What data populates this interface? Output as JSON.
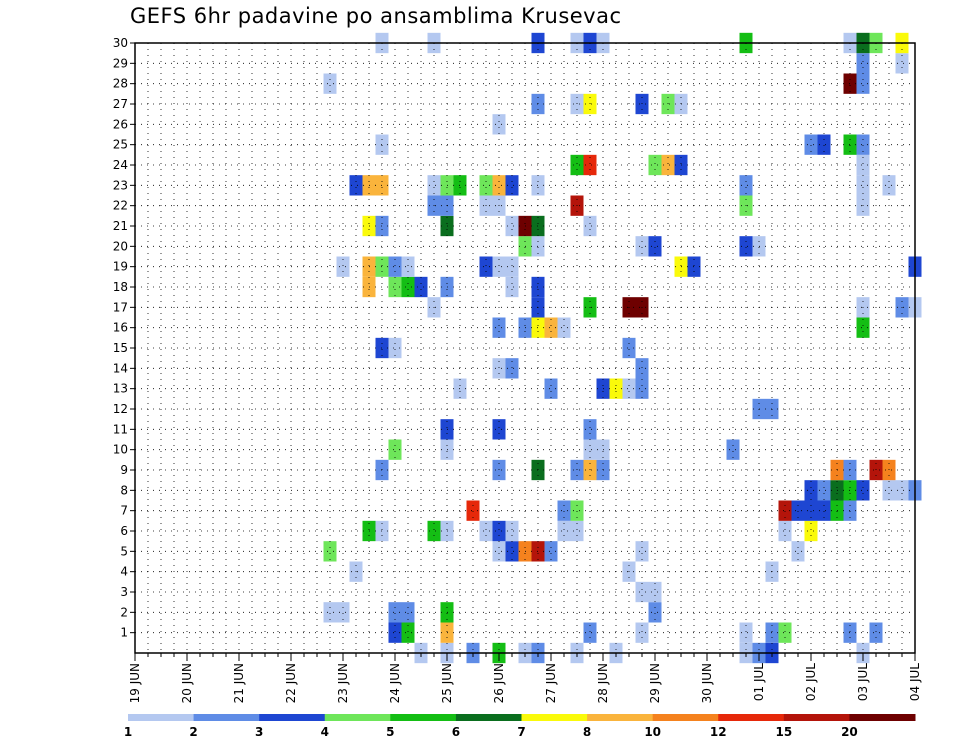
{
  "chart_data": {
    "type": "heatmap",
    "title": "GEFS 6hr padavine po ansamblima Krusevac",
    "y_ticks": [
      "1",
      "2",
      "3",
      "4",
      "5",
      "6",
      "7",
      "8",
      "9",
      "10",
      "11",
      "12",
      "13",
      "14",
      "15",
      "16",
      "17",
      "18",
      "19",
      "20",
      "21",
      "22",
      "23",
      "24",
      "25",
      "26",
      "27",
      "28",
      "29",
      "30"
    ],
    "ylim": [
      0,
      30
    ],
    "x_ticks": [
      "19 JUN",
      "20 JUN",
      "21 JUN",
      "22 JUN",
      "23 JUN",
      "24 JUN",
      "25 JUN",
      "26 JUN",
      "27 JUN",
      "28 JUN",
      "29 JUN",
      "30 JUN",
      "01 JUL",
      "02 JUL",
      "03 JUL",
      "04 JUL"
    ],
    "x_unit": "6h step from 19 JUN 00Z",
    "xlim": [
      0,
      60
    ],
    "grid": true,
    "colorbar": {
      "bins": [
        {
          "from": 1,
          "to": 2,
          "color": "#b4c8f0"
        },
        {
          "from": 2,
          "to": 3,
          "color": "#5f8ce6"
        },
        {
          "from": 3,
          "to": 4,
          "color": "#1e46d2"
        },
        {
          "from": 4,
          "to": 5,
          "color": "#6ee65a"
        },
        {
          "from": 5,
          "to": 6,
          "color": "#14be14"
        },
        {
          "from": 6,
          "to": 7,
          "color": "#0a6e1e"
        },
        {
          "from": 7,
          "to": 8,
          "color": "#fafa0a"
        },
        {
          "from": 8,
          "to": 10,
          "color": "#fab43c"
        },
        {
          "from": 10,
          "to": 12,
          "color": "#f5821e"
        },
        {
          "from": 12,
          "to": 15,
          "color": "#e6280a"
        },
        {
          "from": 15,
          "to": 20,
          "color": "#b4140a"
        },
        {
          "from": 20,
          "to": null,
          "color": "#6e0000"
        }
      ],
      "labels": [
        "1",
        "2",
        "3",
        "4",
        "5",
        "6",
        "7",
        "8",
        "10",
        "12",
        "15",
        "20"
      ]
    },
    "cells": [
      [
        0,
        22,
        1
      ],
      [
        0,
        24,
        1
      ],
      [
        0,
        26,
        2
      ],
      [
        0,
        28,
        5
      ],
      [
        0,
        30,
        1
      ],
      [
        0,
        31,
        2
      ],
      [
        0,
        34,
        1
      ],
      [
        0,
        37,
        1
      ],
      [
        0,
        47,
        1
      ],
      [
        0,
        48,
        2
      ],
      [
        0,
        49,
        3
      ],
      [
        0,
        56,
        1
      ],
      [
        1,
        20,
        3
      ],
      [
        1,
        21,
        5
      ],
      [
        1,
        24,
        8
      ],
      [
        1,
        35,
        2
      ],
      [
        1,
        39,
        1
      ],
      [
        1,
        47,
        1
      ],
      [
        1,
        49,
        2
      ],
      [
        1,
        50,
        4
      ],
      [
        1,
        55,
        2
      ],
      [
        1,
        57,
        2
      ],
      [
        2,
        15,
        1
      ],
      [
        2,
        16,
        1
      ],
      [
        2,
        20,
        2
      ],
      [
        2,
        21,
        2
      ],
      [
        2,
        24,
        5
      ],
      [
        2,
        40,
        2
      ],
      [
        3,
        39,
        1
      ],
      [
        3,
        40,
        1
      ],
      [
        4,
        17,
        1
      ],
      [
        4,
        38,
        1
      ],
      [
        4,
        49,
        1
      ],
      [
        5,
        15,
        4
      ],
      [
        5,
        28,
        1
      ],
      [
        5,
        29,
        3
      ],
      [
        5,
        30,
        10
      ],
      [
        5,
        31,
        15
      ],
      [
        5,
        32,
        2
      ],
      [
        5,
        39,
        1
      ],
      [
        5,
        51,
        1
      ],
      [
        6,
        18,
        5
      ],
      [
        6,
        19,
        1
      ],
      [
        6,
        23,
        5
      ],
      [
        6,
        24,
        1
      ],
      [
        6,
        27,
        1
      ],
      [
        6,
        28,
        3
      ],
      [
        6,
        29,
        1
      ],
      [
        6,
        33,
        1
      ],
      [
        6,
        34,
        1
      ],
      [
        6,
        50,
        1
      ],
      [
        6,
        52,
        7
      ],
      [
        7,
        26,
        12
      ],
      [
        7,
        33,
        2
      ],
      [
        7,
        34,
        4
      ],
      [
        7,
        50,
        15
      ],
      [
        7,
        51,
        3
      ],
      [
        7,
        52,
        3
      ],
      [
        7,
        53,
        3
      ],
      [
        7,
        54,
        5
      ],
      [
        7,
        55,
        2
      ],
      [
        8,
        52,
        3
      ],
      [
        8,
        53,
        2
      ],
      [
        8,
        54,
        6
      ],
      [
        8,
        55,
        5
      ],
      [
        8,
        56,
        3
      ],
      [
        8,
        58,
        1
      ],
      [
        8,
        59,
        1
      ],
      [
        8,
        60,
        2
      ],
      [
        9,
        19,
        2
      ],
      [
        9,
        28,
        2
      ],
      [
        9,
        31,
        6
      ],
      [
        9,
        34,
        2
      ],
      [
        9,
        35,
        8
      ],
      [
        9,
        36,
        2
      ],
      [
        9,
        54,
        10
      ],
      [
        9,
        55,
        2
      ],
      [
        9,
        57,
        15
      ],
      [
        9,
        58,
        10
      ],
      [
        10,
        20,
        4
      ],
      [
        10,
        24,
        1
      ],
      [
        10,
        35,
        1
      ],
      [
        10,
        36,
        1
      ],
      [
        10,
        46,
        2
      ],
      [
        11,
        24,
        3
      ],
      [
        11,
        28,
        3
      ],
      [
        11,
        35,
        2
      ],
      [
        12,
        48,
        2
      ],
      [
        12,
        49,
        2
      ],
      [
        13,
        25,
        1
      ],
      [
        13,
        32,
        2
      ],
      [
        13,
        36,
        3
      ],
      [
        13,
        37,
        7
      ],
      [
        13,
        38,
        1
      ],
      [
        13,
        39,
        2
      ],
      [
        14,
        28,
        1
      ],
      [
        14,
        29,
        2
      ],
      [
        14,
        39,
        2
      ],
      [
        15,
        19,
        3
      ],
      [
        15,
        20,
        1
      ],
      [
        15,
        38,
        2
      ],
      [
        16,
        28,
        2
      ],
      [
        16,
        30,
        2
      ],
      [
        16,
        31,
        7
      ],
      [
        16,
        32,
        8
      ],
      [
        16,
        33,
        1
      ],
      [
        16,
        56,
        5
      ],
      [
        17,
        23,
        1
      ],
      [
        17,
        31,
        3
      ],
      [
        17,
        35,
        5
      ],
      [
        17,
        38,
        20
      ],
      [
        17,
        39,
        20
      ],
      [
        17,
        56,
        1
      ],
      [
        17,
        59,
        2
      ],
      [
        17,
        60,
        1
      ],
      [
        18,
        18,
        8
      ],
      [
        18,
        20,
        4
      ],
      [
        18,
        21,
        5
      ],
      [
        18,
        22,
        3
      ],
      [
        18,
        24,
        2
      ],
      [
        18,
        29,
        1
      ],
      [
        18,
        31,
        3
      ],
      [
        19,
        16,
        1
      ],
      [
        19,
        18,
        8
      ],
      [
        19,
        19,
        4
      ],
      [
        19,
        20,
        2
      ],
      [
        19,
        21,
        1
      ],
      [
        19,
        27,
        3
      ],
      [
        19,
        28,
        1
      ],
      [
        19,
        29,
        1
      ],
      [
        19,
        42,
        7
      ],
      [
        19,
        43,
        3
      ],
      [
        19,
        60,
        3
      ],
      [
        20,
        30,
        4
      ],
      [
        20,
        31,
        1
      ],
      [
        20,
        39,
        1
      ],
      [
        20,
        40,
        3
      ],
      [
        20,
        47,
        3
      ],
      [
        20,
        48,
        1
      ],
      [
        21,
        18,
        7
      ],
      [
        21,
        19,
        2
      ],
      [
        21,
        24,
        6
      ],
      [
        21,
        29,
        1
      ],
      [
        21,
        30,
        20
      ],
      [
        21,
        31,
        6
      ],
      [
        21,
        35,
        1
      ],
      [
        22,
        23,
        2
      ],
      [
        22,
        24,
        2
      ],
      [
        22,
        27,
        1
      ],
      [
        22,
        28,
        1
      ],
      [
        22,
        34,
        15
      ],
      [
        22,
        47,
        4
      ],
      [
        22,
        56,
        1
      ],
      [
        23,
        17,
        3
      ],
      [
        23,
        18,
        8
      ],
      [
        23,
        19,
        8
      ],
      [
        23,
        23,
        1
      ],
      [
        23,
        24,
        4
      ],
      [
        23,
        25,
        5
      ],
      [
        23,
        27,
        4
      ],
      [
        23,
        28,
        8
      ],
      [
        23,
        29,
        3
      ],
      [
        23,
        31,
        1
      ],
      [
        23,
        47,
        2
      ],
      [
        23,
        56,
        1
      ],
      [
        23,
        58,
        1
      ],
      [
        24,
        34,
        5
      ],
      [
        24,
        35,
        12
      ],
      [
        24,
        40,
        4
      ],
      [
        24,
        41,
        8
      ],
      [
        24,
        42,
        3
      ],
      [
        24,
        56,
        1
      ],
      [
        25,
        19,
        1
      ],
      [
        25,
        52,
        2
      ],
      [
        25,
        53,
        3
      ],
      [
        25,
        55,
        5
      ],
      [
        25,
        56,
        2
      ],
      [
        26,
        28,
        1
      ],
      [
        27,
        31,
        2
      ],
      [
        27,
        34,
        1
      ],
      [
        27,
        35,
        7
      ],
      [
        27,
        39,
        3
      ],
      [
        27,
        41,
        4
      ],
      [
        27,
        42,
        1
      ],
      [
        28,
        15,
        1
      ],
      [
        28,
        55,
        20
      ],
      [
        28,
        56,
        2
      ],
      [
        29,
        56,
        2
      ],
      [
        29,
        59,
        1
      ],
      [
        30,
        19,
        1
      ],
      [
        30,
        23,
        1
      ],
      [
        30,
        31,
        3
      ],
      [
        30,
        34,
        1
      ],
      [
        30,
        35,
        3
      ],
      [
        30,
        36,
        1
      ],
      [
        30,
        47,
        5
      ],
      [
        30,
        55,
        1
      ],
      [
        30,
        56,
        6
      ],
      [
        30,
        57,
        4
      ],
      [
        30,
        59,
        7
      ]
    ]
  }
}
